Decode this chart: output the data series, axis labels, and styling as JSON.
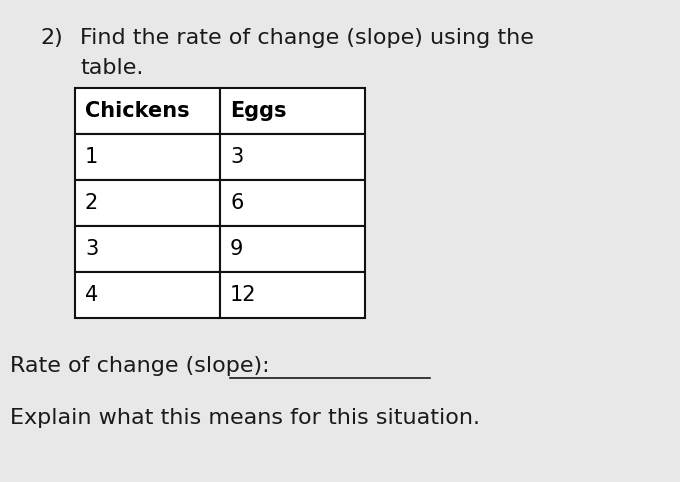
{
  "question_number": "2)",
  "question_text_line1": "Find the rate of change (slope) using the",
  "question_text_line2": "table.",
  "col1_header": "Chickens",
  "col2_header": "Eggs",
  "rows": [
    [
      "1",
      "3"
    ],
    [
      "2",
      "6"
    ],
    [
      "3",
      "9"
    ],
    [
      "4",
      "12"
    ]
  ],
  "rate_label": "Rate of change (slope):  ",
  "rate_underline": "_______________",
  "explain_label": "Explain what this means for this situation.",
  "bg_color": "#e8e8e8",
  "table_bg": "#ffffff",
  "text_color": "#1a1a1a",
  "font_size_question": 16,
  "font_size_table": 15,
  "font_size_bottom": 16,
  "fig_width": 6.8,
  "fig_height": 4.82,
  "dpi": 100
}
